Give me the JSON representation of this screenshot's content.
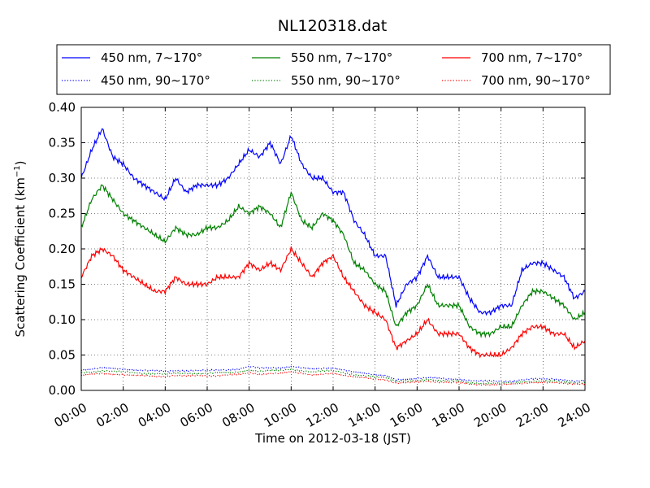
{
  "chart_data": {
    "type": "line",
    "title": "NL120318.dat",
    "xlabel": "Time on 2012-03-18 (JST)",
    "ylabel": "Scattering Coefficient (km",
    "ylabel_sup": "−1",
    "ylabel_close": ")",
    "xlim": [
      0,
      24
    ],
    "ylim": [
      0,
      0.4
    ],
    "grid": true,
    "legend_position": "top",
    "x_tick_values": [
      0,
      2,
      4,
      6,
      8,
      10,
      12,
      14,
      16,
      18,
      20,
      22,
      24
    ],
    "x_tick_labels": [
      "00:00",
      "02:00",
      "04:00",
      "06:00",
      "08:00",
      "10:00",
      "12:00",
      "14:00",
      "16:00",
      "18:00",
      "20:00",
      "22:00",
      "24:00"
    ],
    "y_tick_values": [
      0,
      0.05,
      0.1,
      0.15,
      0.2,
      0.25,
      0.3,
      0.35,
      0.4
    ],
    "y_tick_labels": [
      "0.00",
      "0.05",
      "0.10",
      "0.15",
      "0.20",
      "0.25",
      "0.30",
      "0.35",
      "0.40"
    ],
    "x_hours": [
      0,
      0.5,
      1,
      1.5,
      2,
      2.5,
      3,
      3.5,
      4,
      4.5,
      5,
      5.5,
      6,
      6.5,
      7,
      7.5,
      8,
      8.5,
      9,
      9.5,
      10,
      10.5,
      11,
      11.5,
      12,
      12.5,
      13,
      13.5,
      14,
      14.5,
      15,
      15.5,
      16,
      16.5,
      17,
      17.5,
      18,
      18.5,
      19,
      19.5,
      20,
      20.5,
      21,
      21.5,
      22,
      22.5,
      23,
      23.5,
      24
    ],
    "series": [
      {
        "name": "450 nm, 7∼170°",
        "color": "#0000ff",
        "style": "solid",
        "values": [
          0.3,
          0.34,
          0.37,
          0.33,
          0.32,
          0.3,
          0.29,
          0.28,
          0.27,
          0.3,
          0.28,
          0.29,
          0.29,
          0.29,
          0.3,
          0.32,
          0.34,
          0.33,
          0.35,
          0.32,
          0.36,
          0.32,
          0.3,
          0.3,
          0.28,
          0.28,
          0.24,
          0.22,
          0.19,
          0.19,
          0.12,
          0.15,
          0.16,
          0.19,
          0.16,
          0.16,
          0.16,
          0.13,
          0.11,
          0.11,
          0.12,
          0.12,
          0.17,
          0.18,
          0.18,
          0.17,
          0.16,
          0.13,
          0.14
        ]
      },
      {
        "name": "550 nm, 7∼170°",
        "color": "#008000",
        "style": "solid",
        "values": [
          0.23,
          0.27,
          0.29,
          0.27,
          0.25,
          0.24,
          0.23,
          0.22,
          0.21,
          0.23,
          0.22,
          0.22,
          0.23,
          0.23,
          0.24,
          0.26,
          0.25,
          0.26,
          0.25,
          0.23,
          0.28,
          0.24,
          0.23,
          0.25,
          0.24,
          0.22,
          0.18,
          0.17,
          0.15,
          0.14,
          0.09,
          0.11,
          0.12,
          0.15,
          0.12,
          0.12,
          0.12,
          0.09,
          0.08,
          0.08,
          0.09,
          0.09,
          0.12,
          0.14,
          0.14,
          0.13,
          0.12,
          0.1,
          0.11
        ]
      },
      {
        "name": "700 nm, 7∼170°",
        "color": "#ff0000",
        "style": "solid",
        "values": [
          0.16,
          0.19,
          0.2,
          0.19,
          0.17,
          0.16,
          0.15,
          0.14,
          0.14,
          0.16,
          0.15,
          0.15,
          0.15,
          0.16,
          0.16,
          0.16,
          0.18,
          0.17,
          0.18,
          0.17,
          0.2,
          0.18,
          0.16,
          0.18,
          0.19,
          0.16,
          0.14,
          0.12,
          0.11,
          0.1,
          0.06,
          0.07,
          0.08,
          0.1,
          0.08,
          0.08,
          0.08,
          0.06,
          0.05,
          0.05,
          0.05,
          0.06,
          0.08,
          0.09,
          0.09,
          0.08,
          0.08,
          0.06,
          0.07
        ]
      },
      {
        "name": "450 nm, 90∼170°",
        "color": "#0000ff",
        "style": "dotted",
        "values": [
          0.029,
          0.03,
          0.032,
          0.031,
          0.03,
          0.029,
          0.028,
          0.028,
          0.027,
          0.028,
          0.028,
          0.028,
          0.028,
          0.029,
          0.029,
          0.03,
          0.034,
          0.031,
          0.032,
          0.032,
          0.034,
          0.032,
          0.03,
          0.031,
          0.032,
          0.029,
          0.026,
          0.024,
          0.022,
          0.021,
          0.015,
          0.016,
          0.017,
          0.018,
          0.017,
          0.016,
          0.016,
          0.014,
          0.013,
          0.013,
          0.013,
          0.013,
          0.015,
          0.016,
          0.016,
          0.016,
          0.015,
          0.013,
          0.014
        ]
      },
      {
        "name": "550 nm, 90∼170°",
        "color": "#008000",
        "style": "dotted",
        "values": [
          0.025,
          0.026,
          0.028,
          0.027,
          0.026,
          0.025,
          0.024,
          0.024,
          0.023,
          0.024,
          0.024,
          0.024,
          0.024,
          0.025,
          0.025,
          0.026,
          0.029,
          0.027,
          0.028,
          0.028,
          0.03,
          0.028,
          0.026,
          0.027,
          0.028,
          0.025,
          0.022,
          0.021,
          0.019,
          0.018,
          0.012,
          0.013,
          0.014,
          0.016,
          0.014,
          0.013,
          0.013,
          0.011,
          0.01,
          0.01,
          0.01,
          0.011,
          0.012,
          0.013,
          0.013,
          0.013,
          0.012,
          0.011,
          0.011
        ]
      },
      {
        "name": "700 nm, 90∼170°",
        "color": "#ff0000",
        "style": "dotted",
        "values": [
          0.021,
          0.023,
          0.024,
          0.023,
          0.022,
          0.021,
          0.021,
          0.02,
          0.02,
          0.021,
          0.02,
          0.021,
          0.021,
          0.021,
          0.022,
          0.022,
          0.025,
          0.023,
          0.024,
          0.024,
          0.026,
          0.024,
          0.022,
          0.023,
          0.024,
          0.021,
          0.019,
          0.018,
          0.016,
          0.015,
          0.01,
          0.011,
          0.012,
          0.013,
          0.012,
          0.011,
          0.011,
          0.009,
          0.008,
          0.008,
          0.008,
          0.009,
          0.01,
          0.011,
          0.011,
          0.011,
          0.01,
          0.009,
          0.009
        ]
      }
    ]
  }
}
